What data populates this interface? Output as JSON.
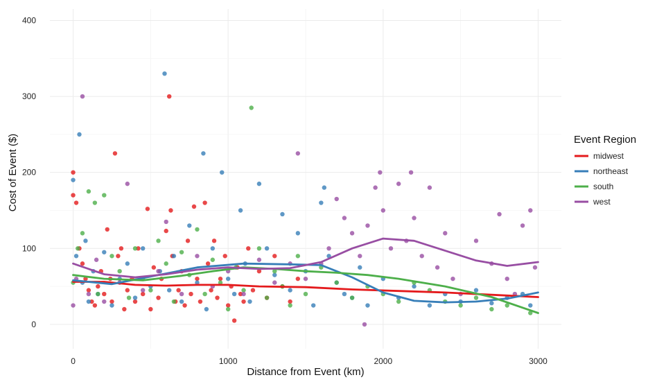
{
  "chart_data": {
    "type": "scatter",
    "xlabel": "Distance from Event (km)",
    "ylabel": "Cost of Event ($)",
    "xlim": [
      -150,
      3150
    ],
    "ylim": [
      -32,
      415
    ],
    "xticks": [
      0,
      1000,
      2000,
      3000
    ],
    "xtick_labels": [
      "0",
      "1000",
      "2000",
      "3000"
    ],
    "yticks": [
      0,
      100,
      200,
      300,
      400
    ],
    "ytick_labels": [
      "0",
      "100",
      "200",
      "300",
      "400"
    ],
    "grid": true,
    "legend": {
      "title": "Event Region",
      "position": "right"
    },
    "series": [
      {
        "name": "midwest",
        "color": "#E41A1C",
        "points": [
          [
            0,
            200
          ],
          [
            0,
            170
          ],
          [
            20,
            160
          ],
          [
            40,
            100
          ],
          [
            60,
            80
          ],
          [
            80,
            60
          ],
          [
            100,
            45
          ],
          [
            120,
            30
          ],
          [
            140,
            25
          ],
          [
            160,
            50
          ],
          [
            180,
            70
          ],
          [
            200,
            40
          ],
          [
            220,
            125
          ],
          [
            240,
            60
          ],
          [
            250,
            30
          ],
          [
            270,
            225
          ],
          [
            290,
            90
          ],
          [
            310,
            100
          ],
          [
            330,
            20
          ],
          [
            350,
            45
          ],
          [
            380,
            60
          ],
          [
            400,
            30
          ],
          [
            420,
            100
          ],
          [
            450,
            40
          ],
          [
            480,
            152
          ],
          [
            500,
            20
          ],
          [
            520,
            75
          ],
          [
            550,
            35
          ],
          [
            570,
            60
          ],
          [
            600,
            123
          ],
          [
            620,
            300
          ],
          [
            630,
            150
          ],
          [
            640,
            90
          ],
          [
            660,
            30
          ],
          [
            680,
            45
          ],
          [
            700,
            70
          ],
          [
            720,
            25
          ],
          [
            740,
            110
          ],
          [
            760,
            40
          ],
          [
            780,
            155
          ],
          [
            800,
            60
          ],
          [
            820,
            30
          ],
          [
            850,
            160
          ],
          [
            870,
            80
          ],
          [
            890,
            45
          ],
          [
            910,
            110
          ],
          [
            930,
            35
          ],
          [
            950,
            60
          ],
          [
            980,
            90
          ],
          [
            1000,
            25
          ],
          [
            1020,
            50
          ],
          [
            1040,
            5
          ],
          [
            1060,
            75
          ],
          [
            1080,
            40
          ],
          [
            1100,
            30
          ],
          [
            1130,
            100
          ],
          [
            1160,
            45
          ],
          [
            1200,
            70
          ],
          [
            1250,
            35
          ],
          [
            1300,
            90
          ],
          [
            1350,
            50
          ],
          [
            1400,
            30
          ],
          [
            1450,
            60
          ]
        ],
        "trend": [
          [
            0,
            56
          ],
          [
            200,
            56
          ],
          [
            400,
            52
          ],
          [
            600,
            51
          ],
          [
            800,
            52
          ],
          [
            1000,
            52
          ],
          [
            1200,
            50
          ],
          [
            1500,
            49
          ],
          [
            1800,
            46
          ],
          [
            2100,
            44
          ],
          [
            2400,
            42
          ],
          [
            2700,
            39
          ],
          [
            3000,
            36
          ]
        ]
      },
      {
        "name": "northeast",
        "color": "#377EB8",
        "points": [
          [
            0,
            190
          ],
          [
            20,
            90
          ],
          [
            40,
            250
          ],
          [
            60,
            55
          ],
          [
            80,
            110
          ],
          [
            100,
            30
          ],
          [
            130,
            70
          ],
          [
            160,
            40
          ],
          [
            200,
            95
          ],
          [
            250,
            25
          ],
          [
            300,
            60
          ],
          [
            350,
            80
          ],
          [
            400,
            35
          ],
          [
            450,
            100
          ],
          [
            500,
            50
          ],
          [
            560,
            70
          ],
          [
            590,
            330
          ],
          [
            620,
            45
          ],
          [
            650,
            90
          ],
          [
            700,
            30
          ],
          [
            750,
            130
          ],
          [
            800,
            55
          ],
          [
            840,
            225
          ],
          [
            860,
            20
          ],
          [
            900,
            100
          ],
          [
            960,
            200
          ],
          [
            1000,
            60
          ],
          [
            1040,
            40
          ],
          [
            1080,
            150
          ],
          [
            1110,
            80
          ],
          [
            1140,
            30
          ],
          [
            1200,
            185
          ],
          [
            1250,
            100
          ],
          [
            1300,
            65
          ],
          [
            1350,
            145
          ],
          [
            1400,
            45
          ],
          [
            1450,
            120
          ],
          [
            1500,
            70
          ],
          [
            1550,
            25
          ],
          [
            1600,
            160
          ],
          [
            1620,
            180
          ],
          [
            1650,
            90
          ],
          [
            1700,
            55
          ],
          [
            1750,
            40
          ],
          [
            1800,
            35
          ],
          [
            1850,
            75
          ],
          [
            1900,
            25
          ],
          [
            2000,
            60
          ],
          [
            2100,
            35
          ],
          [
            2200,
            50
          ],
          [
            2300,
            25
          ],
          [
            2400,
            40
          ],
          [
            2500,
            30
          ],
          [
            2600,
            45
          ],
          [
            2700,
            28
          ],
          [
            2800,
            35
          ],
          [
            2900,
            40
          ],
          [
            2950,
            25
          ]
        ],
        "trend": [
          [
            0,
            58
          ],
          [
            250,
            53
          ],
          [
            500,
            63
          ],
          [
            800,
            75
          ],
          [
            1100,
            80
          ],
          [
            1400,
            79
          ],
          [
            1600,
            78
          ],
          [
            1800,
            62
          ],
          [
            2000,
            42
          ],
          [
            2200,
            31
          ],
          [
            2400,
            29
          ],
          [
            2600,
            30
          ],
          [
            2800,
            34
          ],
          [
            3000,
            42
          ]
        ]
      },
      {
        "name": "south",
        "color": "#4DAF4A",
        "points": [
          [
            0,
            55
          ],
          [
            30,
            100
          ],
          [
            60,
            120
          ],
          [
            100,
            175
          ],
          [
            140,
            160
          ],
          [
            160,
            40
          ],
          [
            200,
            170
          ],
          [
            250,
            90
          ],
          [
            300,
            70
          ],
          [
            360,
            35
          ],
          [
            400,
            100
          ],
          [
            450,
            60
          ],
          [
            500,
            45
          ],
          [
            550,
            110
          ],
          [
            600,
            80
          ],
          [
            650,
            30
          ],
          [
            700,
            95
          ],
          [
            750,
            65
          ],
          [
            800,
            125
          ],
          [
            850,
            40
          ],
          [
            900,
            85
          ],
          [
            950,
            55
          ],
          [
            1000,
            20
          ],
          [
            1050,
            75
          ],
          [
            1100,
            45
          ],
          [
            1150,
            285
          ],
          [
            1200,
            100
          ],
          [
            1250,
            35
          ],
          [
            1300,
            70
          ],
          [
            1350,
            50
          ],
          [
            1400,
            25
          ],
          [
            1450,
            90
          ],
          [
            1500,
            40
          ],
          [
            1600,
            75
          ],
          [
            1700,
            55
          ],
          [
            1800,
            35
          ],
          [
            1900,
            50
          ],
          [
            2000,
            40
          ],
          [
            2100,
            30
          ],
          [
            2200,
            55
          ],
          [
            2300,
            45
          ],
          [
            2400,
            30
          ],
          [
            2500,
            25
          ],
          [
            2600,
            35
          ],
          [
            2700,
            20
          ],
          [
            2800,
            25
          ],
          [
            2950,
            15
          ]
        ],
        "trend": [
          [
            0,
            65
          ],
          [
            200,
            60
          ],
          [
            450,
            58
          ],
          [
            700,
            64
          ],
          [
            900,
            70
          ],
          [
            1100,
            75
          ],
          [
            1300,
            73
          ],
          [
            1500,
            70
          ],
          [
            1700,
            68
          ],
          [
            1900,
            65
          ],
          [
            2100,
            60
          ],
          [
            2400,
            50
          ],
          [
            2700,
            36
          ],
          [
            3000,
            15
          ]
        ]
      },
      {
        "name": "west",
        "color": "#984EA3",
        "points": [
          [
            0,
            25
          ],
          [
            20,
            60
          ],
          [
            60,
            300
          ],
          [
            100,
            40
          ],
          [
            150,
            85
          ],
          [
            200,
            30
          ],
          [
            300,
            55
          ],
          [
            350,
            185
          ],
          [
            450,
            45
          ],
          [
            550,
            70
          ],
          [
            600,
            135
          ],
          [
            700,
            40
          ],
          [
            800,
            90
          ],
          [
            900,
            50
          ],
          [
            1000,
            70
          ],
          [
            1100,
            40
          ],
          [
            1200,
            85
          ],
          [
            1300,
            55
          ],
          [
            1400,
            80
          ],
          [
            1450,
            225
          ],
          [
            1500,
            60
          ],
          [
            1600,
            80
          ],
          [
            1650,
            100
          ],
          [
            1700,
            165
          ],
          [
            1750,
            140
          ],
          [
            1800,
            120
          ],
          [
            1850,
            90
          ],
          [
            1880,
            0
          ],
          [
            1900,
            130
          ],
          [
            1950,
            180
          ],
          [
            1980,
            200
          ],
          [
            2000,
            150
          ],
          [
            2050,
            100
          ],
          [
            2100,
            185
          ],
          [
            2150,
            110
          ],
          [
            2180,
            200
          ],
          [
            2200,
            140
          ],
          [
            2250,
            90
          ],
          [
            2300,
            180
          ],
          [
            2350,
            75
          ],
          [
            2400,
            120
          ],
          [
            2450,
            60
          ],
          [
            2500,
            40
          ],
          [
            2600,
            110
          ],
          [
            2700,
            80
          ],
          [
            2750,
            145
          ],
          [
            2800,
            60
          ],
          [
            2850,
            40
          ],
          [
            2900,
            130
          ],
          [
            2950,
            150
          ],
          [
            2980,
            75
          ]
        ],
        "trend": [
          [
            0,
            80
          ],
          [
            200,
            66
          ],
          [
            400,
            62
          ],
          [
            600,
            66
          ],
          [
            800,
            72
          ],
          [
            1000,
            75
          ],
          [
            1200,
            73
          ],
          [
            1400,
            74
          ],
          [
            1600,
            82
          ],
          [
            1800,
            100
          ],
          [
            2000,
            113
          ],
          [
            2200,
            110
          ],
          [
            2400,
            97
          ],
          [
            2600,
            84
          ],
          [
            2800,
            77
          ],
          [
            3000,
            82
          ]
        ]
      }
    ]
  }
}
